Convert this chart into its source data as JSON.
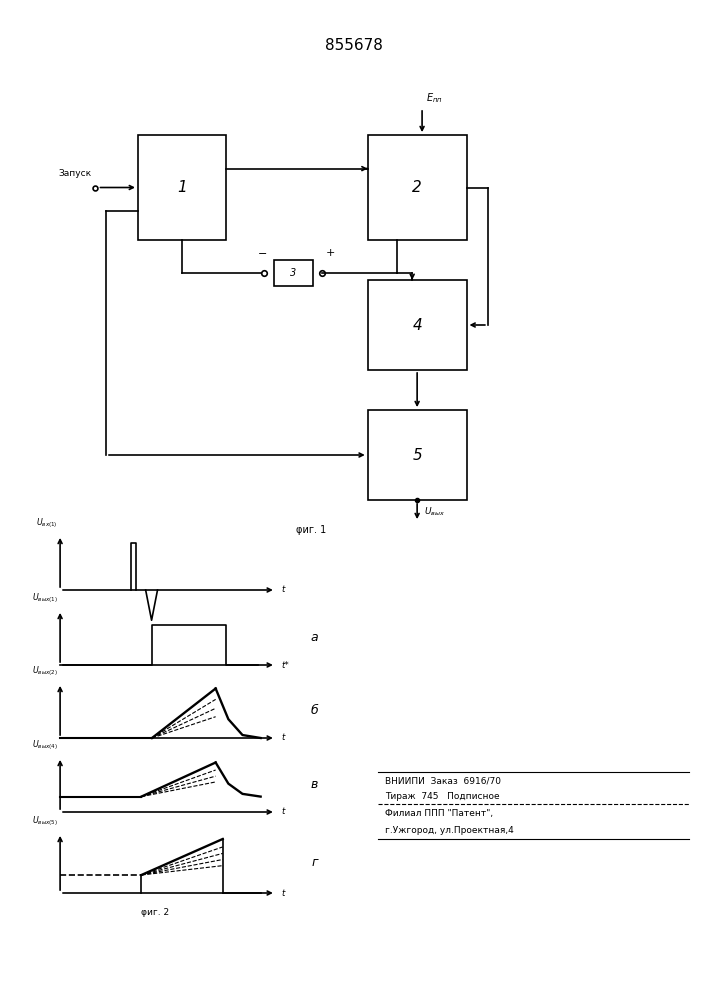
{
  "title": "855678",
  "bg": "#ffffff",
  "lw": 1.2,
  "bottom_lines": [
    "ВНИИПИ  Заказ  6916/70",
    "Тираж  745   Подписное",
    "Филиал ППП \"Патент\",",
    "г.Ужгород, ул.Проектная,4"
  ]
}
